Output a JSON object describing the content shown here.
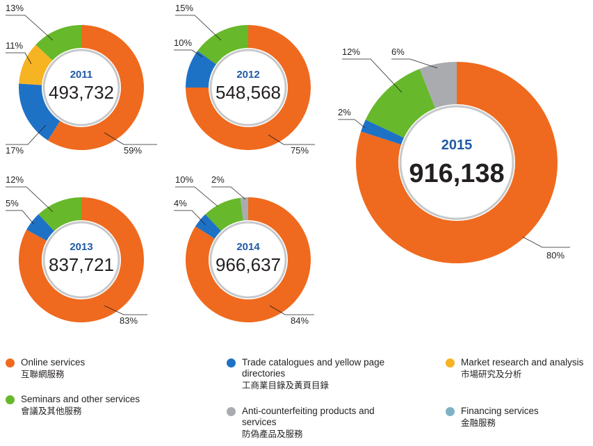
{
  "colors": {
    "online": "#ef6a1e",
    "trade": "#1e72c6",
    "market": "#f6b322",
    "seminars": "#67b82a",
    "anti": "#a9abae",
    "financing": "#7fb1c4",
    "year": "#1f5aa6"
  },
  "chart_data": [
    {
      "type": "pie",
      "year": "2011",
      "total": "493,732",
      "slices": [
        {
          "category": "Online services",
          "value": 59,
          "label": "59%"
        },
        {
          "category": "Trade catalogues and yellow page directories",
          "value": 17,
          "label": "17%"
        },
        {
          "category": "Market research and analysis",
          "value": 11,
          "label": "11%"
        },
        {
          "category": "Seminars and other services",
          "value": 13,
          "label": "13%"
        }
      ]
    },
    {
      "type": "pie",
      "year": "2012",
      "total": "548,568",
      "slices": [
        {
          "category": "Online services",
          "value": 75,
          "label": "75%"
        },
        {
          "category": "Trade catalogues and yellow page directories",
          "value": 10,
          "label": "10%"
        },
        {
          "category": "Seminars and other services",
          "value": 15,
          "label": "15%"
        }
      ]
    },
    {
      "type": "pie",
      "year": "2013",
      "total": "837,721",
      "slices": [
        {
          "category": "Online services",
          "value": 83,
          "label": "83%"
        },
        {
          "category": "Trade catalogues and yellow page directories",
          "value": 5,
          "label": "5%"
        },
        {
          "category": "Seminars and other services",
          "value": 12,
          "label": "12%"
        }
      ]
    },
    {
      "type": "pie",
      "year": "2014",
      "total": "966,637",
      "slices": [
        {
          "category": "Online services",
          "value": 84,
          "label": "84%"
        },
        {
          "category": "Trade catalogues and yellow page directories",
          "value": 4,
          "label": "4%"
        },
        {
          "category": "Seminars and other services",
          "value": 10,
          "label": "10%"
        },
        {
          "category": "Anti-counterfeiting products and services",
          "value": 2,
          "label": "2%"
        }
      ]
    },
    {
      "type": "pie",
      "year": "2015",
      "total": "916,138",
      "slices": [
        {
          "category": "Online services",
          "value": 80,
          "label": "80%"
        },
        {
          "category": "Trade catalogues and yellow page directories",
          "value": 2,
          "label": "2%"
        },
        {
          "category": "Seminars and other services",
          "value": 12,
          "label": "12%"
        },
        {
          "category": "Anti-counterfeiting products and services",
          "value": 6,
          "label": "6%"
        }
      ]
    }
  ],
  "legend": {
    "online": {
      "en": "Online services",
      "zh": "互聯網服務",
      "color": "#ef6a1e"
    },
    "trade": {
      "en": "Trade catalogues and yellow page directories",
      "zh": "工商業目錄及黃頁目錄",
      "color": "#1e72c6"
    },
    "market": {
      "en": "Market research and analysis",
      "zh": "市場研究及分析",
      "color": "#f6b322"
    },
    "seminars": {
      "en": "Seminars and other services",
      "zh": "會議及其他服務",
      "color": "#67b82a"
    },
    "anti": {
      "en": "Anti-counterfeiting products and services",
      "zh": "防偽產品及服務",
      "color": "#a9abae"
    },
    "financing": {
      "en": "Financing services",
      "zh": "金融服務",
      "color": "#7fb1c4"
    }
  }
}
